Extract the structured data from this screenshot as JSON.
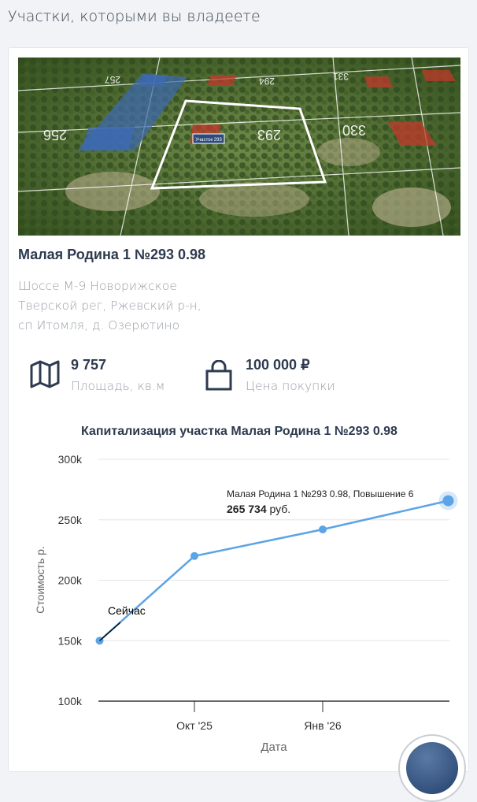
{
  "section_title": "Участки, которыми вы владеете",
  "plot": {
    "title": "Малая Родина 1 №293 0.98",
    "address_lines": [
      "Шоссе М-9 Новорижское",
      "Тверской рег, Ржевский р-н,",
      "сп Итомля, д. Озерютино"
    ],
    "photo_labels": {
      "plot_badge": "Участок 293",
      "numbers": [
        "256",
        "257",
        "293",
        "294",
        "330",
        "331"
      ]
    },
    "area_value": "9 757",
    "area_label": "Площадь, кв.м",
    "price_value": "100 000 ₽",
    "price_label": "Цена покупки"
  },
  "chart_data": {
    "type": "line",
    "title": "Капитализация участка Малая Родина 1 №293 0.98",
    "xlabel": "Дата",
    "ylabel": "Стоимость р.",
    "x_ticks": [
      "Окт '25",
      "Янв '26"
    ],
    "y_ticks": [
      "100k",
      "150k",
      "200k",
      "250k",
      "300k"
    ],
    "ylim": [
      100000,
      300000
    ],
    "grid": true,
    "line_color": "#5ba4e6",
    "x": [
      "2025-07-25",
      "2025-10-01",
      "2026-01-01",
      "2026-04-01"
    ],
    "values": [
      150000,
      220000,
      242000,
      265734
    ],
    "annotation": "Сейчас",
    "tooltip": {
      "series": "Малая Родина 1 №293 0.98, Повышение 6",
      "value": "265 734",
      "unit": "руб."
    }
  }
}
